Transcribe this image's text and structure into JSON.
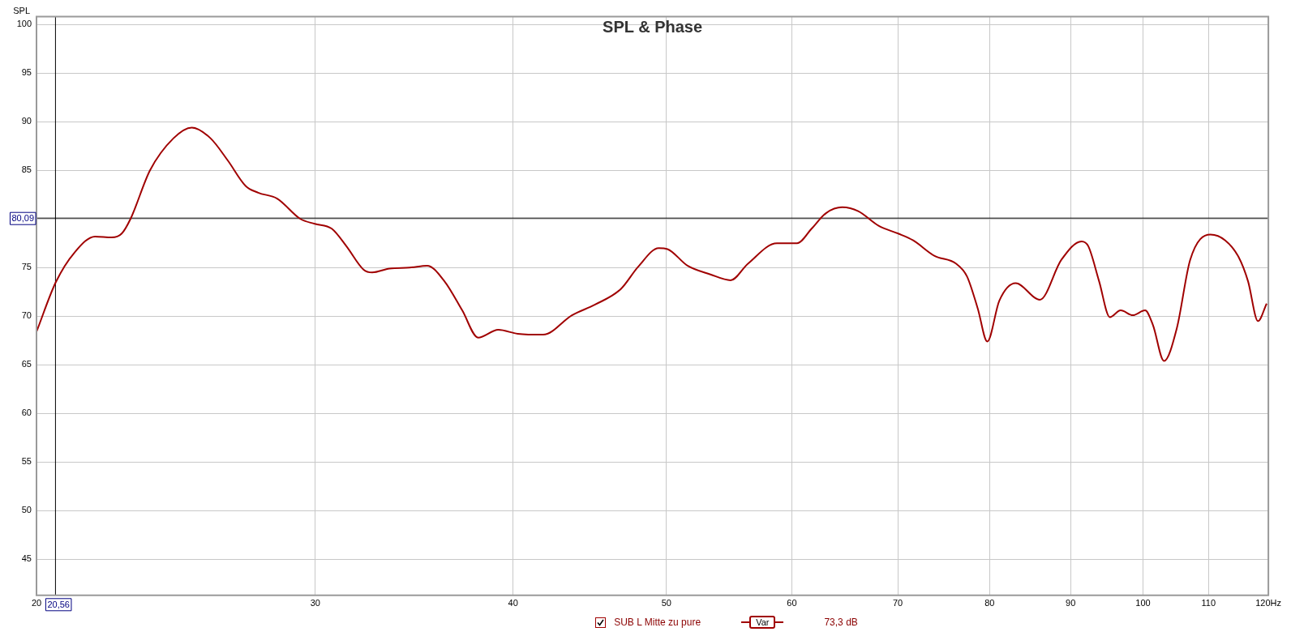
{
  "chart_data": {
    "type": "line",
    "title": "SPL & Phase",
    "ylabel": "SPL",
    "xlim": [
      20,
      120
    ],
    "xticks": [
      20,
      30,
      40,
      50,
      60,
      70,
      80,
      90,
      100,
      110,
      {
        "value": 120,
        "label": "120Hz"
      }
    ],
    "ylim": [
      41.3,
      100.8
    ],
    "yticks": [
      45,
      50,
      55,
      60,
      65,
      70,
      75,
      {
        "value": 80,
        "label": null
      },
      85,
      90,
      95,
      100
    ],
    "log": "x",
    "grid": true,
    "legend": "bottom",
    "ref_lines": [
      {
        "axis": "x",
        "value": 20.56,
        "label": "20,56",
        "color": "#000000"
      },
      {
        "axis": "y",
        "value": 80.09,
        "label": "80,09",
        "color": "#000000"
      }
    ],
    "annotations": [
      "Var",
      "73,3 dB"
    ],
    "series": [
      {
        "name": "SUB L Mitte zu pure",
        "color": "#a00000",
        "x": [
          20.0,
          20.57,
          21.15,
          21.78,
          22.31,
          22.64,
          22.93,
          23.59,
          24.41,
          25.07,
          25.76,
          26.42,
          27.11,
          27.61,
          28.38,
          29.36,
          29.98,
          30.73,
          31.39,
          32.18,
          32.59,
          33.42,
          34.42,
          35.3,
          36.2,
          37.15,
          38.02,
          39.15,
          40.27,
          41.79,
          43.58,
          45.07,
          46.79,
          47.99,
          49.44,
          50.07,
          51.55,
          53.3,
          54.89,
          56.29,
          58.71,
          60.46,
          61.75,
          63.06,
          64.58,
          66.08,
          68.07,
          70.04,
          71.58,
          73.85,
          76.2,
          77.41,
          78.63,
          79.73,
          81.14,
          83.09,
          86.07,
          88.8,
          91.45,
          92.35,
          93.81,
          95.29,
          96.8,
          98.53,
          100.3,
          101.45,
          103.1,
          105.05,
          107.1,
          110.3,
          112.7,
          114.9,
          116.5,
          118.2,
          119.7
        ],
        "values": [
          68.4,
          73.5,
          76.6,
          78.2,
          78.1,
          78.5,
          80,
          85,
          88.3,
          89.4,
          88.3,
          86,
          83.4,
          82.7,
          82.1,
          80,
          79.5,
          79,
          77.2,
          74.8,
          74.5,
          74.9,
          75,
          75.2,
          73.6,
          70.6,
          67.8,
          68.6,
          68.2,
          68.1,
          70.1,
          71.2,
          72.8,
          75.1,
          77,
          76.9,
          75.2,
          74.3,
          73.7,
          75.4,
          77.5,
          77.5,
          79,
          80.6,
          81.2,
          80.8,
          79.3,
          78.5,
          77.8,
          76.2,
          75.4,
          74.1,
          70.8,
          67.4,
          71.6,
          73.4,
          71.7,
          75.8,
          77.7,
          77.2,
          73.6,
          69.9,
          70.6,
          70.1,
          70.6,
          69.1,
          65.4,
          68.8,
          75.8,
          78.4,
          77.8,
          76.1,
          73.6,
          69.5,
          71.3
        ]
      }
    ]
  }
}
